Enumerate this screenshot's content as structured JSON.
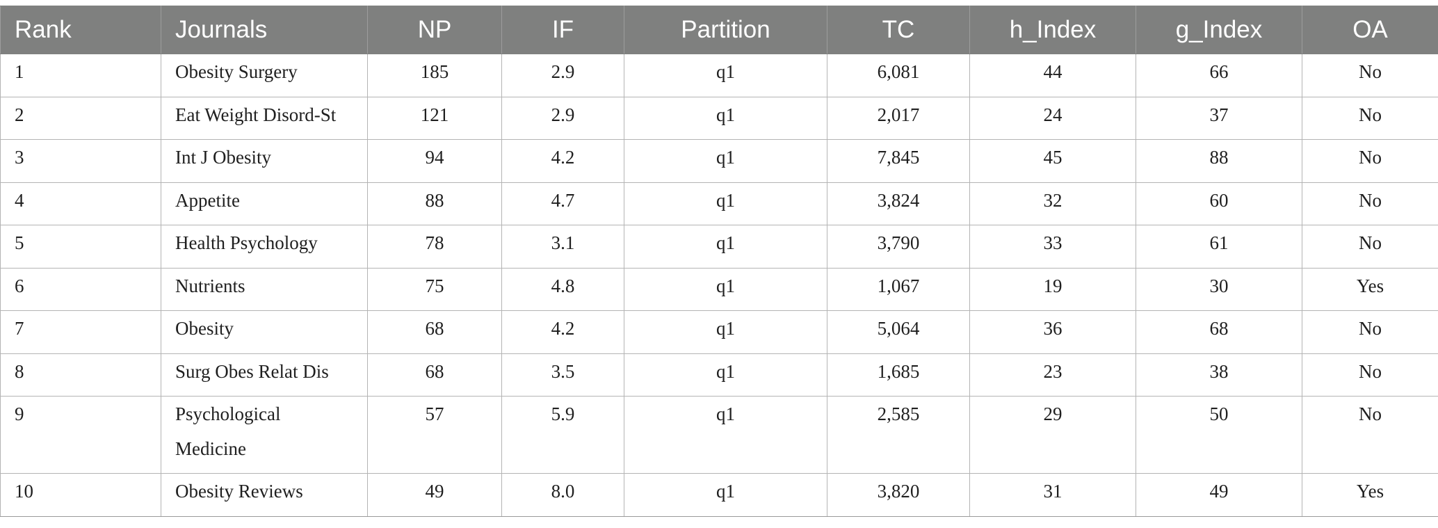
{
  "table": {
    "headers": [
      "Rank",
      "Journals",
      "NP",
      "IF",
      "Partition",
      "TC",
      "h_Index",
      "g_Index",
      "OA"
    ],
    "rows": [
      [
        "1",
        "Obesity Surgery",
        "185",
        "2.9",
        "q1",
        "6,081",
        "44",
        "66",
        "No"
      ],
      [
        "2",
        "Eat Weight Disord-St",
        "121",
        "2.9",
        "q1",
        "2,017",
        "24",
        "37",
        "No"
      ],
      [
        "3",
        "Int J Obesity",
        "94",
        "4.2",
        "q1",
        "7,845",
        "45",
        "88",
        "No"
      ],
      [
        "4",
        "Appetite",
        "88",
        "4.7",
        "q1",
        "3,824",
        "32",
        "60",
        "No"
      ],
      [
        "5",
        "Health Psychology",
        "78",
        "3.1",
        "q1",
        "3,790",
        "33",
        "61",
        "No"
      ],
      [
        "6",
        "Nutrients",
        "75",
        "4.8",
        "q1",
        "1,067",
        "19",
        "30",
        "Yes"
      ],
      [
        "7",
        "Obesity",
        "68",
        "4.2",
        "q1",
        "5,064",
        "36",
        "68",
        "No"
      ],
      [
        "8",
        "Surg Obes Relat Dis",
        "68",
        "3.5",
        "q1",
        "1,685",
        "23",
        "38",
        "No"
      ],
      [
        "9",
        "Psychological Medicine",
        "57",
        "5.9",
        "q1",
        "2,585",
        "29",
        "50",
        "No"
      ],
      [
        "10",
        "Obesity Reviews",
        "49",
        "8.0",
        "q1",
        "3,820",
        "31",
        "49",
        "Yes"
      ]
    ]
  },
  "colors": {
    "header_background": "#7f807f",
    "header_text": "#ffffff",
    "grid_line": "#b4b4b4"
  }
}
